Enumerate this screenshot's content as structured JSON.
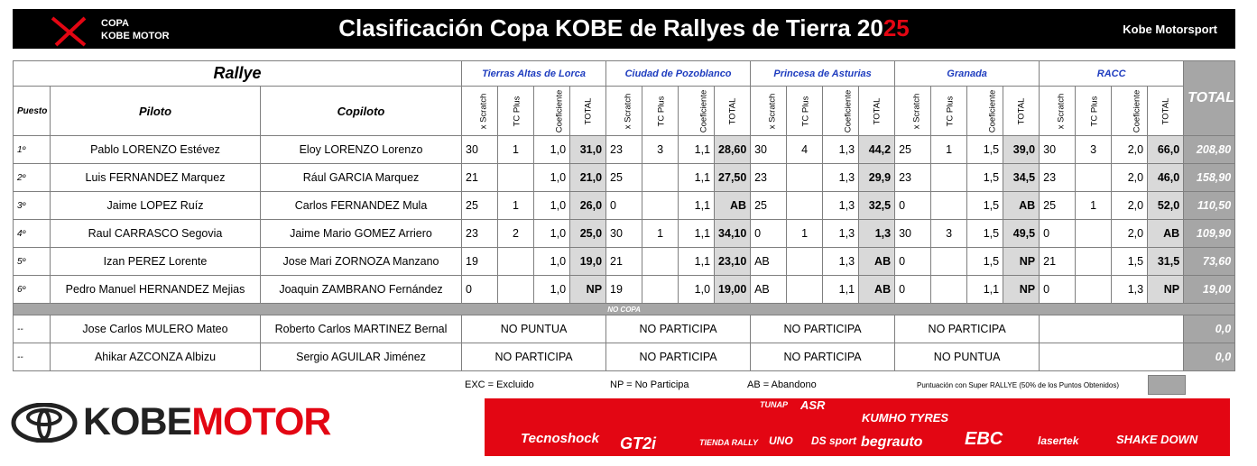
{
  "header": {
    "logo_top": "COPA",
    "logo_bottom": "KOBE MOTOR",
    "title": "Clasificación Copa KOBE de Rallyes de Tierra 20",
    "title_accent": "25",
    "brand": "Kobe Motorsport"
  },
  "table": {
    "caption": "Rallye",
    "rallies": [
      "Tierras Altas de Lorca",
      "Ciudad de Pozoblanco",
      "Princesa de Asturias",
      "Granada",
      "RACC"
    ],
    "columns": {
      "position": "Puesto",
      "driver": "Piloto",
      "codriver": "Copiloto",
      "sub": [
        "x Scratch",
        "TC Plus",
        "Coeficiente",
        "TOTAL"
      ],
      "total": "TOTAL"
    },
    "rows": [
      {
        "position": "1º",
        "driver": "Pablo LORENZO Estévez",
        "codriver": "Eloy LORENZO Lorenzo",
        "results": [
          [
            "30",
            "1",
            "1,0",
            "31,0"
          ],
          [
            "23",
            "3",
            "1,1",
            "28,60"
          ],
          [
            "30",
            "4",
            "1,3",
            "44,2"
          ],
          [
            "25",
            "1",
            "1,5",
            "39,0"
          ],
          [
            "30",
            "3",
            "2,0",
            "66,0"
          ]
        ],
        "total": "208,80"
      },
      {
        "position": "2º",
        "driver": "Luis FERNANDEZ Marquez",
        "codriver": "Rául GARCIA Marquez",
        "results": [
          [
            "21",
            null,
            "1,0",
            "21,0"
          ],
          [
            "25",
            null,
            "1,1",
            "27,50"
          ],
          [
            "23",
            null,
            "1,3",
            "29,9"
          ],
          [
            "23",
            null,
            "1,5",
            "34,5"
          ],
          [
            "23",
            null,
            "2,0",
            "46,0"
          ]
        ],
        "total": "158,90"
      },
      {
        "position": "3º",
        "driver": "Jaime LOPEZ Ruíz",
        "codriver": "Carlos FERNANDEZ Mula",
        "results": [
          [
            "25",
            "1",
            "1,0",
            "26,0"
          ],
          [
            "0",
            null,
            "1,1",
            "AB"
          ],
          [
            "25",
            null,
            "1,3",
            "32,5"
          ],
          [
            "0",
            null,
            "1,5",
            "AB"
          ],
          [
            "25",
            "1",
            "2,0",
            "52,0"
          ]
        ],
        "total": "110,50"
      },
      {
        "position": "4º",
        "driver": "Raul CARRASCO Segovia",
        "codriver": "Jaime Mario GOMEZ Arriero",
        "results": [
          [
            "23",
            "2",
            "1,0",
            "25,0"
          ],
          [
            "30",
            "1",
            "1,1",
            "34,10"
          ],
          [
            "0",
            "1",
            "1,3",
            "1,3"
          ],
          [
            "30",
            "3",
            "1,5",
            "49,5"
          ],
          [
            "0",
            null,
            "2,0",
            "AB"
          ]
        ],
        "total": "109,90"
      },
      {
        "position": "5º",
        "driver": "Izan PEREZ Lorente",
        "codriver": "Jose Mari ZORNOZA Manzano",
        "results": [
          [
            "19",
            null,
            "1,0",
            "19,0"
          ],
          [
            "21",
            null,
            "1,1",
            "23,10"
          ],
          [
            "AB",
            null,
            "1,3",
            "AB"
          ],
          [
            "0",
            null,
            "1,5",
            "NP"
          ],
          [
            "21",
            null,
            "1,5",
            "31,5"
          ]
        ],
        "total": "73,60"
      },
      {
        "position": "6º",
        "driver": "Pedro Manuel HERNANDEZ Mejias",
        "codriver": "Joaquin ZAMBRANO Fernández",
        "results": [
          [
            "0",
            null,
            "1,0",
            "NP"
          ],
          [
            "19",
            null,
            "1,0",
            "19,00"
          ],
          [
            "AB",
            null,
            "1,1",
            "AB"
          ],
          [
            "0",
            null,
            "1,1",
            "NP"
          ],
          [
            "0",
            null,
            "1,3",
            "NP"
          ]
        ],
        "total": "19,00"
      }
    ],
    "separator": "NO COPA",
    "other_rows": [
      {
        "position": "--",
        "driver": "Jose Carlos MULERO Mateo",
        "codriver": "Roberto Carlos MARTINEZ Bernal",
        "results": [
          "NO PUNTUA",
          "NO PARTICIPA",
          "NO PARTICIPA",
          "NO PARTICIPA",
          null
        ],
        "total": "0,0"
      },
      {
        "position": "--",
        "driver": "Ahikar AZCONZA Albizu",
        "codriver": "Sergio AGUILAR Jiménez",
        "results": [
          "NO PARTICIPA",
          "NO PARTICIPA",
          "NO PARTICIPA",
          "NO PUNTUA",
          null
        ],
        "total": "0,0"
      }
    ]
  },
  "legend": [
    "EXC = Excluido",
    "NP = No Participa",
    "AB = Abandono"
  ],
  "super_rallye_note": "Puntuación con Super RALLYE (50% de los Puntos Obtenidos)",
  "footer": {
    "brand": "KOBE",
    "brand_accent": "MOTOR",
    "sponsors": [
      "TUNAP",
      "ASR",
      "KUMHO TYRES",
      "Tecnoshock",
      "GT2i",
      "TIENDA RALLY",
      "UNO",
      "DS sport",
      "begrauto",
      "EBC",
      "lasertek",
      "SHAKE DOWN"
    ]
  }
}
